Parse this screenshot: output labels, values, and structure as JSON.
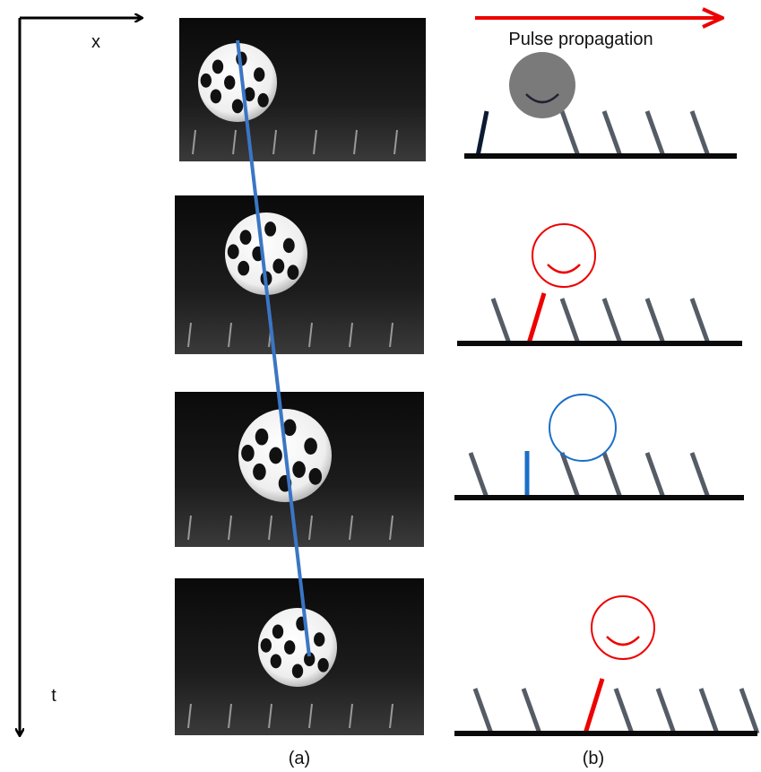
{
  "axes": {
    "x_label": "x",
    "t_label": "t"
  },
  "panel_b": {
    "arrow_label": "Pulse propagation"
  },
  "captions": {
    "a": "(a)",
    "b": "(b)"
  }
}
